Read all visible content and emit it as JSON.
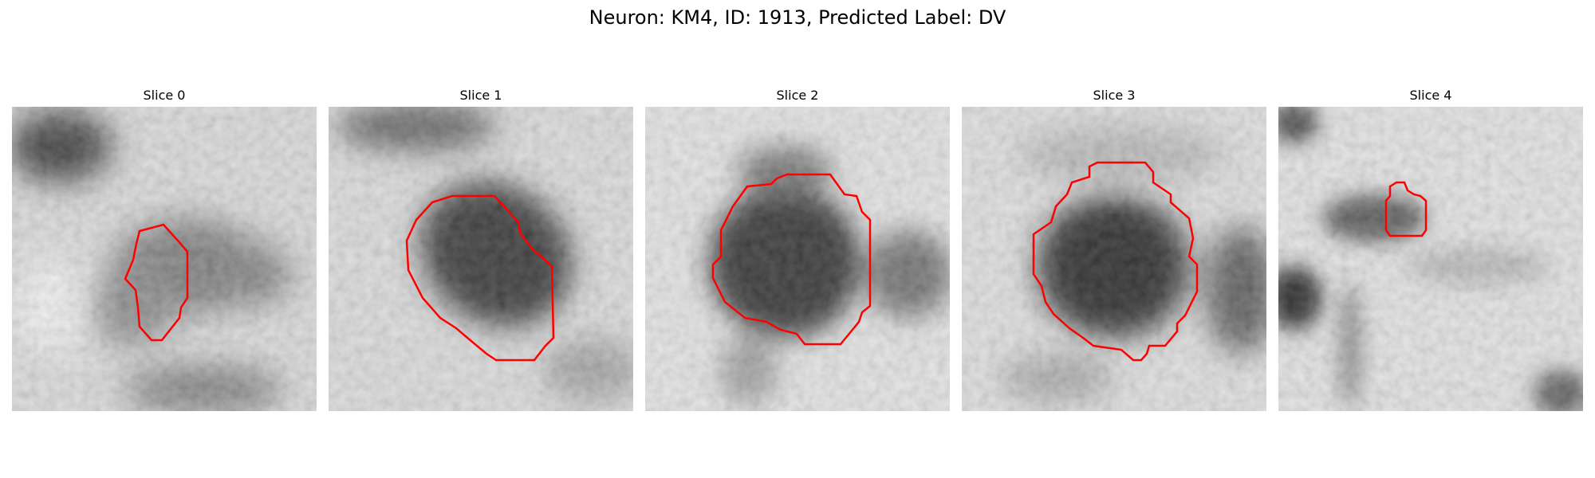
{
  "figure": {
    "title": "Neuron: KM4, ID: 1913, Predicted Label: DV"
  },
  "colors": {
    "contour": "#ff0000",
    "background": "#ffffff"
  },
  "slices": [
    {
      "label": "Slice 0"
    },
    {
      "label": "Slice 1"
    },
    {
      "label": "Slice 2"
    },
    {
      "label": "Slice 3"
    },
    {
      "label": "Slice 4"
    }
  ]
}
